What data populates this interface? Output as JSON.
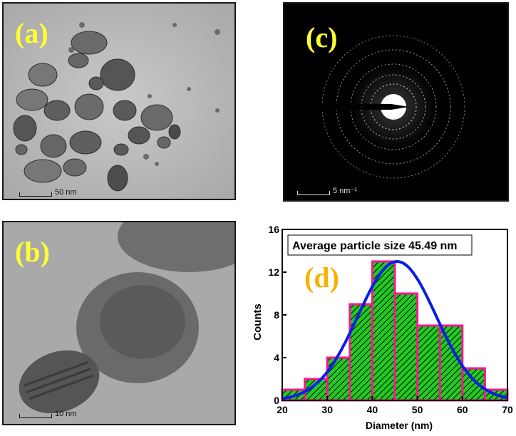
{
  "panels": {
    "a": {
      "label": "(a)",
      "scale_label": "50 nm"
    },
    "b": {
      "label": "(b)",
      "scale_label": "10 nm"
    },
    "c": {
      "label": "(c)",
      "scale_label": "5 nm⁻¹"
    },
    "d": {
      "label": "(d)"
    }
  },
  "colors": {
    "label_yellow": "#ffff33",
    "label_d": "#f5b400",
    "bar_fill": "#1fcc1f",
    "bar_edge": "#ff1493",
    "curve": "#0a1ee6"
  },
  "chart_data": {
    "type": "bar",
    "title": "Average particle size 45.49 nm",
    "xlabel": "Diameter (nm)",
    "ylabel": "Counts",
    "xlim": [
      20,
      70
    ],
    "ylim": [
      0,
      16
    ],
    "xticks": [
      20,
      30,
      40,
      50,
      60,
      70
    ],
    "yticks": [
      0,
      4,
      8,
      12,
      16
    ],
    "bin_edges": [
      20,
      25,
      30,
      35,
      40,
      45,
      50,
      55,
      60,
      65,
      70
    ],
    "values": [
      1,
      2,
      4,
      9,
      13,
      10,
      7,
      7,
      3,
      1
    ],
    "fit": {
      "type": "gaussian",
      "mean": 45.49,
      "sigma": 8.7,
      "peak": 13
    },
    "grid": false
  }
}
